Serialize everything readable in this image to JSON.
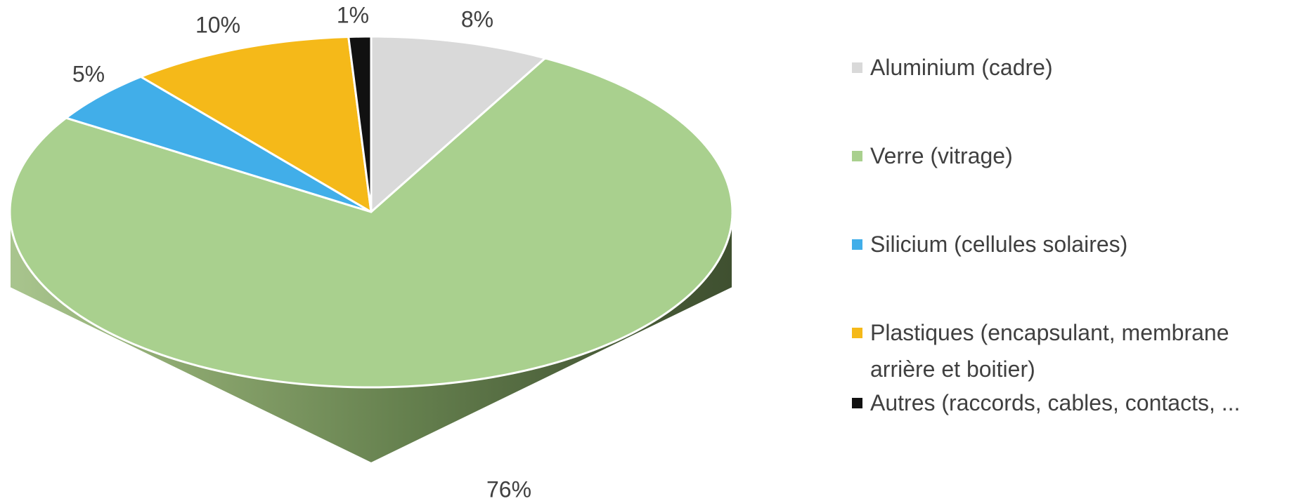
{
  "chart_data": {
    "type": "pie",
    "style": "3d",
    "categories": [
      "Aluminium (cadre)",
      "Verre (vitrage)",
      "Silicium (cellules solaires)",
      "Plastiques (encapsulant, membrane arrière et boitier)",
      "Autres (raccords, cables, contacts, ..."
    ],
    "values": [
      8,
      76,
      5,
      10,
      1
    ],
    "labels": [
      "8%",
      "76%",
      "5%",
      "10%",
      "1%"
    ],
    "colors": [
      "#d9d9d9",
      "#a9d08e",
      "#41aee9",
      "#f5b919",
      "#111111"
    ],
    "side_colors": [
      "#9a9a9a",
      "#5a7646",
      "#2a7aa8",
      "#b88a10",
      "#000000"
    ],
    "legend_position": "right",
    "title": ""
  }
}
